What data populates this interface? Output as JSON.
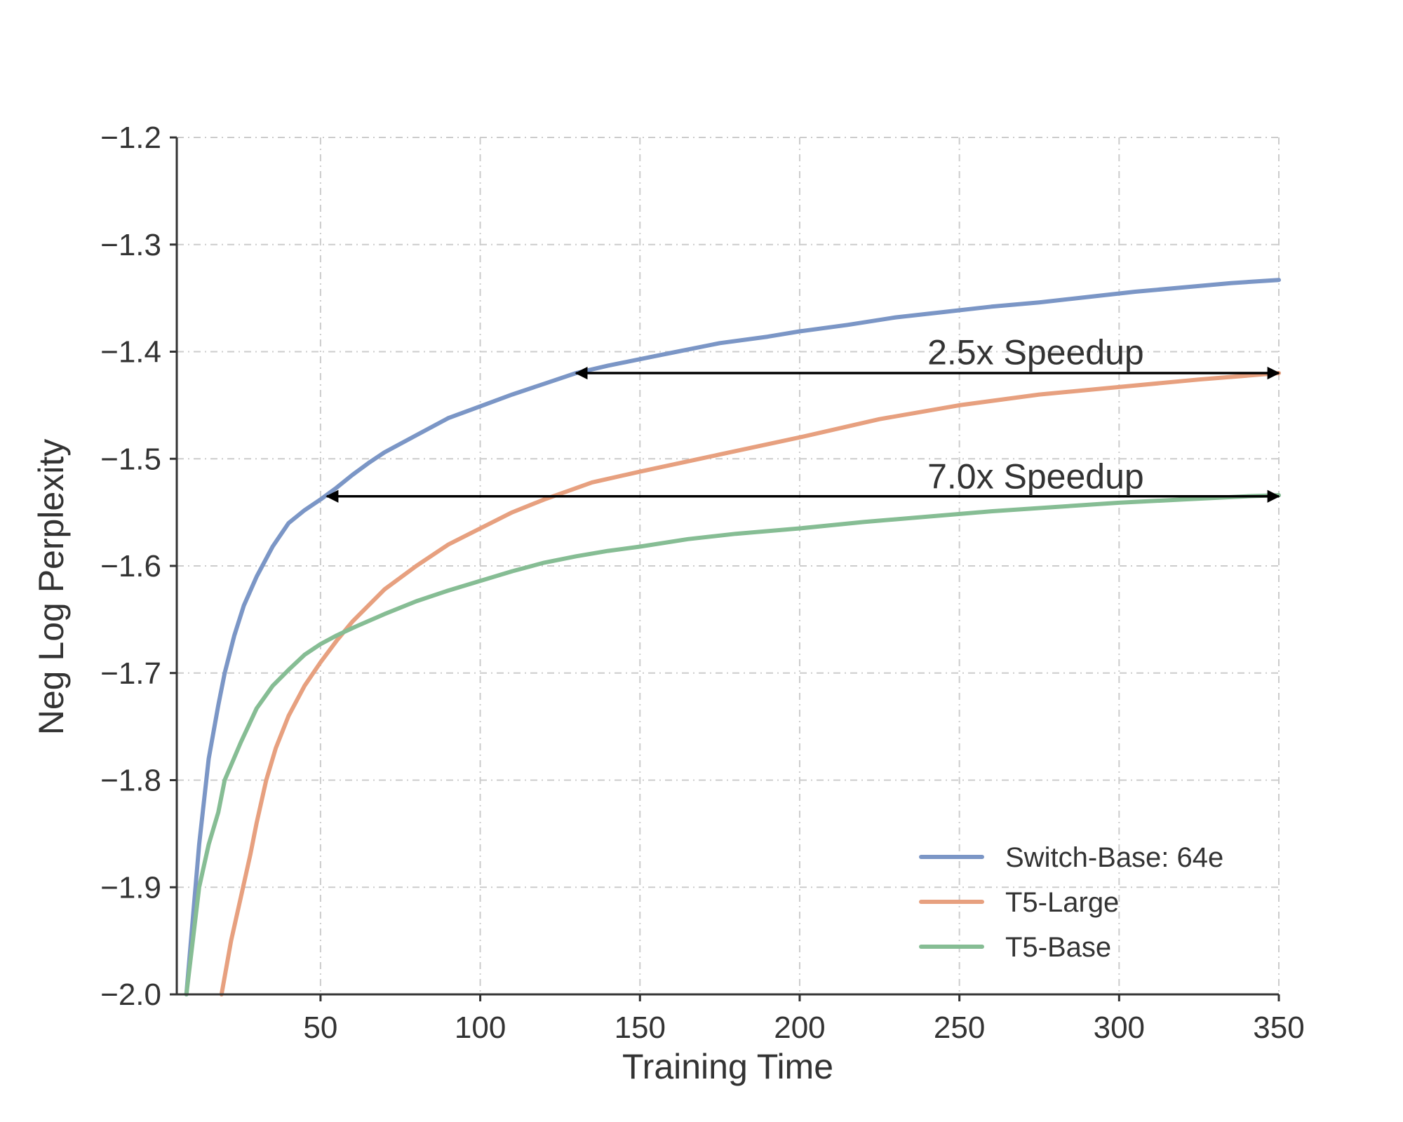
{
  "chart_data": {
    "type": "line",
    "xlabel": "Training Time",
    "ylabel": "Neg Log Perplexity",
    "xlim": [
      5,
      350
    ],
    "ylim": [
      -2.0,
      -1.2
    ],
    "xticks": [
      50,
      100,
      150,
      200,
      250,
      300,
      350
    ],
    "yticks": [
      -2.0,
      -1.9,
      -1.8,
      -1.7,
      -1.6,
      -1.5,
      -1.4,
      -1.3,
      -1.2
    ],
    "xtick_labels": [
      "50",
      "100",
      "150",
      "200",
      "250",
      "300",
      "350"
    ],
    "ytick_labels": [
      "−2.0",
      "−1.9",
      "−1.8",
      "−1.7",
      "−1.6",
      "−1.5",
      "−1.4",
      "−1.3",
      "−1.2"
    ],
    "grid": true,
    "legend_position": "bottom-right",
    "series": [
      {
        "name": "Switch-Base: 64e",
        "color": "#7b96c6",
        "x": [
          8,
          10,
          12,
          15,
          18,
          20,
          23,
          26,
          30,
          35,
          40,
          45,
          50,
          55,
          60,
          65,
          70,
          80,
          90,
          100,
          110,
          120,
          130,
          140,
          150,
          160,
          175,
          190,
          200,
          215,
          230,
          245,
          260,
          275,
          290,
          305,
          320,
          335,
          350
        ],
        "y": [
          -2.0,
          -1.93,
          -1.86,
          -1.78,
          -1.73,
          -1.7,
          -1.665,
          -1.637,
          -1.61,
          -1.582,
          -1.56,
          -1.548,
          -1.538,
          -1.527,
          -1.515,
          -1.504,
          -1.494,
          -1.478,
          -1.462,
          -1.451,
          -1.44,
          -1.43,
          -1.42,
          -1.413,
          -1.407,
          -1.401,
          -1.392,
          -1.386,
          -1.381,
          -1.375,
          -1.368,
          -1.363,
          -1.358,
          -1.354,
          -1.349,
          -1.344,
          -1.34,
          -1.336,
          -1.333
        ]
      },
      {
        "name": "T5-Large",
        "color": "#e7a07f",
        "x": [
          19,
          22,
          25,
          28,
          30,
          33,
          36,
          40,
          45,
          50,
          55,
          60,
          70,
          80,
          90,
          100,
          110,
          120,
          135,
          150,
          175,
          200,
          225,
          250,
          275,
          300,
          325,
          350
        ],
        "y": [
          -2.0,
          -1.95,
          -1.91,
          -1.87,
          -1.84,
          -1.8,
          -1.77,
          -1.74,
          -1.712,
          -1.69,
          -1.67,
          -1.652,
          -1.622,
          -1.6,
          -1.58,
          -1.565,
          -1.55,
          -1.538,
          -1.522,
          -1.512,
          -1.496,
          -1.48,
          -1.463,
          -1.45,
          -1.44,
          -1.433,
          -1.426,
          -1.42
        ]
      },
      {
        "name": "T5-Base",
        "color": "#86bd94",
        "x": [
          8,
          10,
          12,
          15,
          18,
          20,
          25,
          30,
          35,
          40,
          45,
          50,
          55,
          60,
          70,
          80,
          90,
          100,
          110,
          120,
          130,
          140,
          150,
          165,
          180,
          200,
          220,
          240,
          260,
          280,
          300,
          320,
          340,
          350
        ],
        "y": [
          -2.0,
          -1.95,
          -1.9,
          -1.86,
          -1.83,
          -1.8,
          -1.765,
          -1.733,
          -1.712,
          -1.697,
          -1.683,
          -1.673,
          -1.665,
          -1.658,
          -1.645,
          -1.633,
          -1.623,
          -1.614,
          -1.605,
          -1.597,
          -1.591,
          -1.586,
          -1.582,
          -1.575,
          -1.57,
          -1.565,
          -1.559,
          -1.554,
          -1.549,
          -1.545,
          -1.541,
          -1.538,
          -1.535,
          -1.534
        ]
      }
    ],
    "annotations": [
      {
        "text": "2.5x Speedup",
        "x_start": 130,
        "x_end": 350,
        "y": -1.42,
        "text_x": 240,
        "text_y": -1.4
      },
      {
        "text": "7.0x Speedup",
        "x_start": 52,
        "x_end": 350,
        "y": -1.535,
        "text_x": 240,
        "text_y": -1.516
      }
    ]
  }
}
